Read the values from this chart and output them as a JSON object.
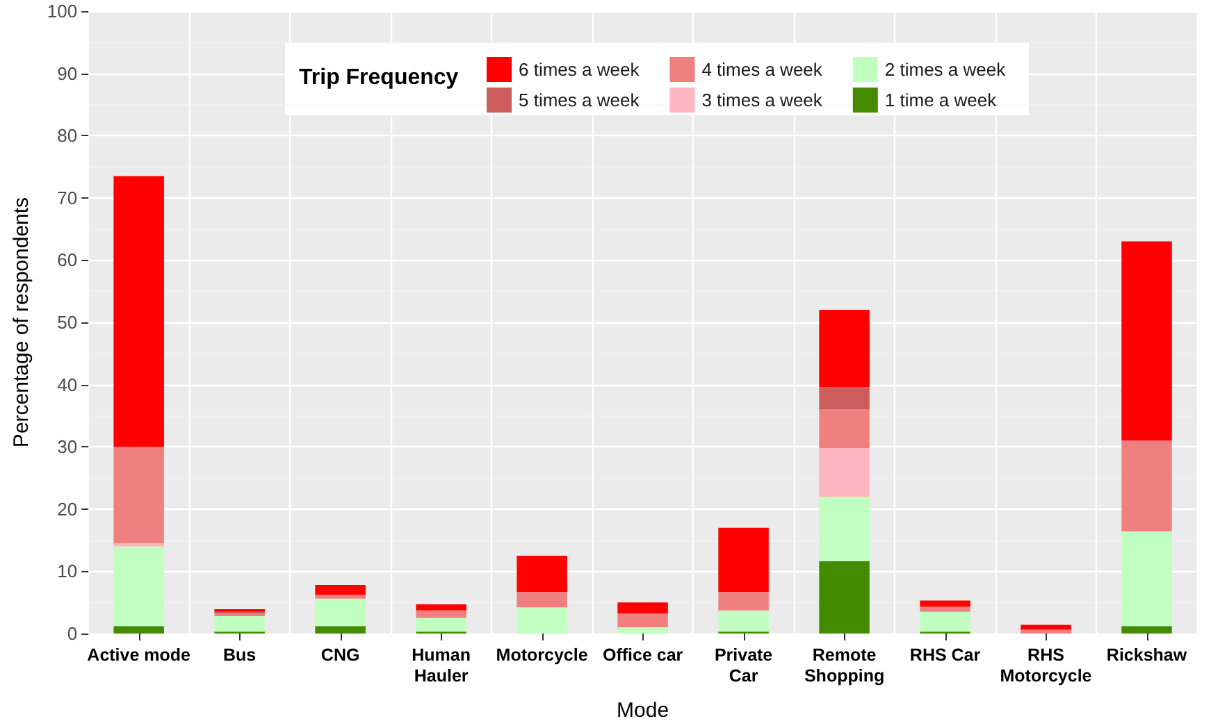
{
  "chart_data": {
    "type": "bar",
    "stacked": true,
    "xlabel": "Mode",
    "ylabel": "Percentage of respondents",
    "legend_title": "Trip Frequency",
    "categories": [
      "Active mode",
      "Bus",
      "CNG",
      "Human\nHauler",
      "Motorcycle",
      "Office car",
      "Private\nCar",
      "Remote\nShopping",
      "RHS Car",
      "RHS\nMotorcycle",
      "Rickshaw"
    ],
    "series": [
      {
        "name": "1 time a week",
        "color": "#458b00",
        "values": [
          1.2,
          0.3,
          1.2,
          0.3,
          0,
          0,
          0.3,
          11.6,
          0.3,
          0,
          1.2
        ]
      },
      {
        "name": "2 times a week",
        "color": "#c1ffc1",
        "values": [
          12.8,
          2.5,
          4.4,
          2.2,
          4.2,
          1,
          3.4,
          10.4,
          3.2,
          null,
          15.2
        ]
      },
      {
        "name": "3 times a week",
        "color": "#ffb6c1",
        "values": [
          0.5,
          0,
          0,
          0,
          0,
          0,
          0,
          7.8,
          0,
          0,
          0
        ]
      },
      {
        "name": "4 times a week",
        "color": "#f08080",
        "values": [
          15.5,
          0.4,
          0.6,
          1.2,
          2.5,
          2.2,
          3,
          6.2,
          0.8,
          0.6,
          14.6
        ]
      },
      {
        "name": "5 times a week",
        "color": "#cd5c5c",
        "values": [
          0,
          0.3,
          0,
          0,
          0,
          0,
          0,
          3.6,
          0,
          0,
          0
        ]
      },
      {
        "name": "6 times a week",
        "color": "#ff0000",
        "values": [
          43.5,
          0.4,
          1.6,
          1,
          5.8,
          1.8,
          10.3,
          12.4,
          1,
          0.8,
          32
        ]
      }
    ],
    "ylim": [
      0,
      100
    ],
    "yticks": [
      0,
      10,
      20,
      30,
      40,
      50,
      60,
      70,
      80,
      90,
      100
    ],
    "grid": true,
    "legend": "top"
  }
}
